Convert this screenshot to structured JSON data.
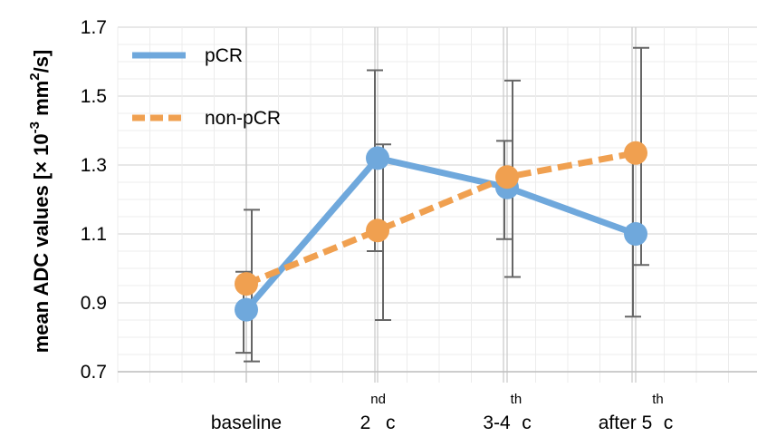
{
  "chart_data": {
    "type": "line",
    "categories": [
      "baseline",
      "2nd c",
      "3-4th c",
      "after 5th c"
    ],
    "xtick_labels": [
      {
        "main": "baseline",
        "sup": "",
        "tail": ""
      },
      {
        "main": "2",
        "sup": "nd",
        "tail": "c"
      },
      {
        "main": "3-4",
        "sup": "th",
        "tail": "c"
      },
      {
        "main": "after 5",
        "sup": "th",
        "tail": "c"
      }
    ],
    "ylabel": {
      "prefix": "mean ADC values [× 10",
      "exp1": "-3",
      "mid": " mm",
      "exp2": "2",
      "suffix": "/s]"
    },
    "ylim": [
      0.7,
      1.7
    ],
    "yticks": [
      "0.7",
      "0.9",
      "1.1",
      "1.3",
      "1.5",
      "1.7"
    ],
    "grid": true,
    "legend_position": "top-left",
    "series": [
      {
        "name": "pCR",
        "color": "#6fa8dc",
        "style": "solid",
        "values": [
          0.88,
          1.32,
          1.235,
          1.1
        ],
        "error_low": [
          0.755,
          1.05,
          1.085,
          0.86
        ],
        "error_high": [
          0.99,
          1.575,
          1.37,
          1.34
        ]
      },
      {
        "name": "non-pCR",
        "color": "#f0a050",
        "style": "dashed",
        "values": [
          0.955,
          1.11,
          1.265,
          1.335
        ],
        "error_low": [
          0.73,
          0.85,
          0.975,
          1.01
        ],
        "error_high": [
          1.17,
          1.36,
          1.545,
          1.64
        ]
      }
    ]
  }
}
